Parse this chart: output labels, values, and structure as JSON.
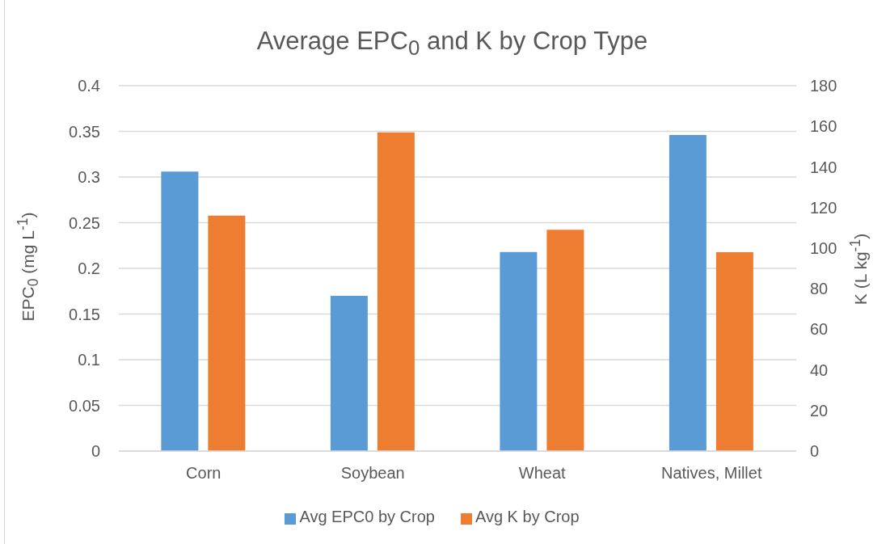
{
  "chart_data": {
    "type": "bar",
    "title": "Average EPC$_{0}$ and K by Crop Type",
    "ylabel": "EPC$_{0}$ (mg L$^{-1}$)",
    "y2label": "K (L kg$^{-1}$)",
    "categories": [
      "Corn",
      "Soybean",
      "Wheat",
      "Natives, Millet"
    ],
    "series": [
      {
        "name": "Avg EPC0 by Crop",
        "color": "#5b9bd5",
        "values": [
          0.306,
          0.17,
          0.218,
          0.346
        ]
      },
      {
        "name": "Avg K by Crop",
        "color": "#ed7d31",
        "axis": "y2",
        "values": [
          116,
          157,
          109,
          98
        ]
      }
    ],
    "ylim": [
      0,
      0.4
    ],
    "yticks": [
      0,
      0.05,
      0.1,
      0.15,
      0.2,
      0.25,
      0.3,
      0.35,
      0.4
    ],
    "y2lim": [
      0,
      180
    ],
    "y2ticks": [
      0,
      20,
      40,
      60,
      80,
      100,
      120,
      140,
      160,
      180
    ],
    "grid": "y",
    "legend": "bottom"
  }
}
